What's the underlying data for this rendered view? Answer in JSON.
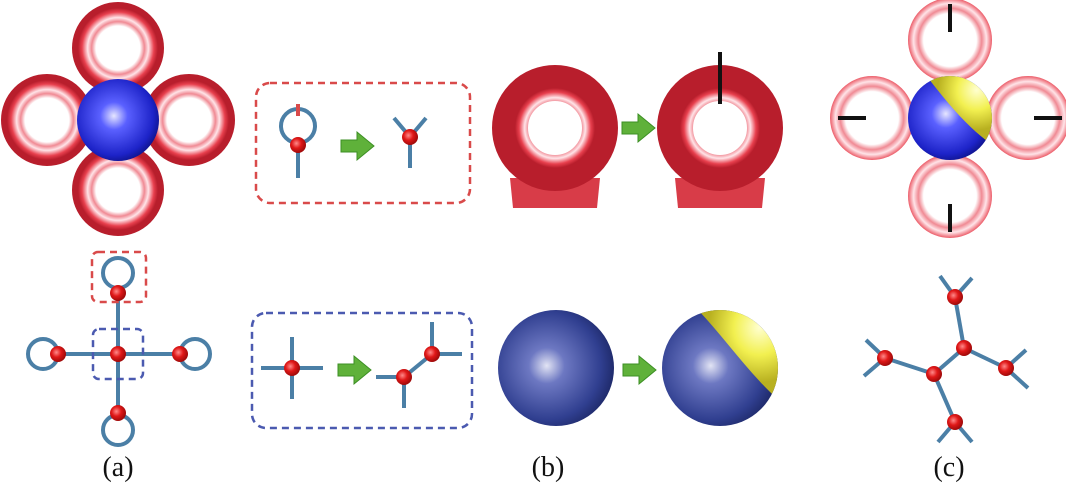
{
  "figure": {
    "panels": [
      {
        "id": "a",
        "caption": "(a)"
      },
      {
        "id": "b",
        "caption": "(b)"
      },
      {
        "id": "c",
        "caption": "(c)"
      }
    ]
  },
  "colors": {
    "torus": "#e8404e",
    "sphere_blue": "#2a2fd0",
    "sphere_navy": "#2f3f8f",
    "cap_yellow": "#f2f050",
    "graph_edge": "#4b7fa6",
    "graph_node": "#e01818",
    "arrow": "#5fb13a",
    "box_red": "#d94a4a",
    "box_blue": "#4b5ab0",
    "cut": "#111111"
  }
}
